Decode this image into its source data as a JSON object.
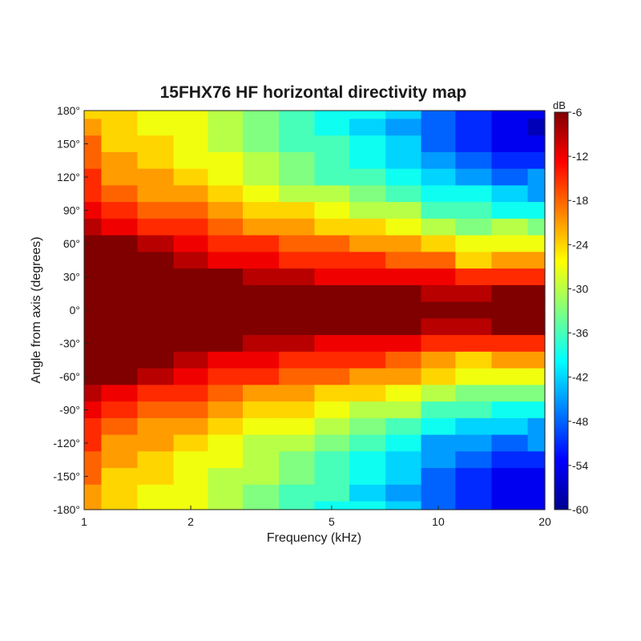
{
  "chart_data": {
    "type": "heatmap",
    "title": "15FHX76 HF horizontal directivity map",
    "xlabel": "Frequency (kHz)",
    "ylabel": "Angle from axis (degrees)",
    "x_scale": "log",
    "xlim": [
      1,
      20
    ],
    "ylim": [
      -180,
      180
    ],
    "x_ticks": [
      1,
      2,
      5,
      10,
      20
    ],
    "x_tick_labels": [
      "1",
      "2",
      "5",
      "10",
      "20"
    ],
    "y_ticks": [
      180,
      150,
      120,
      90,
      60,
      30,
      0,
      -30,
      -60,
      -90,
      -120,
      -150,
      -180
    ],
    "y_tick_labels": [
      "180°",
      "150°",
      "120°",
      "90°",
      "60°",
      "30°",
      "0°",
      "-30°",
      "-60°",
      "-90°",
      "-120°",
      "-150°",
      "-180°"
    ],
    "colorbar": {
      "label": "dB",
      "range": [
        -60,
        -6
      ],
      "ticks": [
        -6,
        -12,
        -18,
        -24,
        -30,
        -36,
        -42,
        -48,
        -54,
        -60
      ],
      "tick_labels": [
        "-6",
        "-12",
        "-18",
        "-24",
        "-30",
        "-36",
        "-42",
        "-48",
        "-54",
        "-60"
      ],
      "colormap": "jet"
    },
    "level_step_db": 3,
    "frequency_khz": [
      1,
      1.25,
      1.6,
      2,
      2.5,
      3.15,
      4,
      5,
      6.3,
      8,
      10,
      12.5,
      16,
      20
    ],
    "angle_deg": [
      180,
      165,
      150,
      135,
      120,
      105,
      90,
      75,
      60,
      45,
      30,
      15,
      0,
      -15,
      -30,
      -45,
      -60,
      -75,
      -90,
      -105,
      -120,
      -135,
      -150,
      -165,
      -180
    ],
    "db_values": [
      [
        -23,
        -24,
        -26,
        -28,
        -30,
        -33,
        -36,
        -38,
        -40,
        -43,
        -47,
        -52,
        -55,
        -55
      ],
      [
        -22,
        -24,
        -26,
        -28,
        -30,
        -33,
        -36,
        -38,
        -41,
        -44,
        -48,
        -52,
        -55,
        -56
      ],
      [
        -18,
        -23,
        -25,
        -27,
        -29,
        -32,
        -35,
        -37,
        -40,
        -42,
        -47,
        -50,
        -55,
        -53
      ],
      [
        -17,
        -21,
        -24,
        -26,
        -28,
        -31,
        -34,
        -36,
        -38,
        -41,
        -45,
        -48,
        -51,
        -52
      ],
      [
        -16,
        -20,
        -22,
        -24,
        -27,
        -30,
        -33,
        -35,
        -37,
        -39,
        -43,
        -45,
        -48,
        -46
      ],
      [
        -14,
        -18,
        -20,
        -22,
        -24,
        -26,
        -29,
        -31,
        -33,
        -35,
        -38,
        -40,
        -43,
        -44
      ],
      [
        -12,
        -14,
        -17,
        -19,
        -21,
        -23,
        -25,
        -27,
        -29,
        -31,
        -35,
        -37,
        -38,
        -39
      ],
      [
        -8,
        -12,
        -14,
        -16,
        -18,
        -20,
        -22,
        -24,
        -25,
        -27,
        -30,
        -33,
        -31,
        -34
      ],
      [
        -5,
        -7,
        -10,
        -12,
        -14,
        -16,
        -18,
        -19,
        -20,
        -22,
        -24,
        -28,
        -27,
        -27
      ],
      [
        -4,
        -5,
        -6,
        -9,
        -11,
        -13,
        -14,
        -15,
        -16,
        -17,
        -19,
        -23,
        -22,
        -21
      ],
      [
        -3,
        -4,
        -4,
        -6,
        -7,
        -9,
        -10,
        -11,
        -11,
        -12,
        -13,
        -16,
        -15,
        -15
      ],
      [
        -2,
        -2,
        -3,
        -4,
        -4,
        -5,
        -6,
        -6,
        -6,
        -7,
        -8,
        -9,
        -7,
        -7
      ],
      [
        0,
        0,
        0,
        0,
        0,
        0,
        0,
        0,
        0,
        0,
        0,
        0,
        0,
        0
      ],
      [
        -2,
        -2,
        -3,
        -4,
        -4,
        -5,
        -6,
        -6,
        -6,
        -7,
        -8,
        -9,
        -7,
        -7
      ],
      [
        -3,
        -4,
        -4,
        -6,
        -7,
        -8,
        -10,
        -11,
        -11,
        -12,
        -14,
        -16,
        -15,
        -15
      ],
      [
        -4,
        -5,
        -6,
        -9,
        -11,
        -12,
        -14,
        -15,
        -16,
        -17,
        -20,
        -23,
        -22,
        -20
      ],
      [
        -6,
        -7,
        -10,
        -12,
        -14,
        -16,
        -18,
        -19,
        -20,
        -22,
        -25,
        -28,
        -27,
        -26
      ],
      [
        -9,
        -12,
        -14,
        -16,
        -18,
        -20,
        -22,
        -24,
        -25,
        -27,
        -31,
        -33,
        -32,
        -33
      ],
      [
        -12,
        -14,
        -17,
        -19,
        -21,
        -23,
        -25,
        -27,
        -29,
        -31,
        -36,
        -37,
        -38,
        -39
      ],
      [
        -14,
        -18,
        -20,
        -22,
        -24,
        -26,
        -28,
        -30,
        -33,
        -35,
        -40,
        -41,
        -42,
        -44
      ],
      [
        -16,
        -20,
        -22,
        -24,
        -27,
        -29,
        -31,
        -33,
        -36,
        -39,
        -44,
        -46,
        -47,
        -46
      ],
      [
        -17,
        -21,
        -24,
        -26,
        -28,
        -30,
        -33,
        -35,
        -38,
        -41,
        -46,
        -48,
        -51,
        -52
      ],
      [
        -18,
        -23,
        -25,
        -27,
        -29,
        -31,
        -34,
        -36,
        -40,
        -43,
        -47,
        -50,
        -54,
        -53
      ],
      [
        -21,
        -24,
        -26,
        -28,
        -30,
        -32,
        -35,
        -37,
        -41,
        -44,
        -48,
        -52,
        -55,
        -55
      ],
      [
        -20,
        -24,
        -26,
        -28,
        -30,
        -33,
        -36,
        -38,
        -40,
        -43,
        -47,
        -52,
        -55,
        -55
      ]
    ]
  }
}
